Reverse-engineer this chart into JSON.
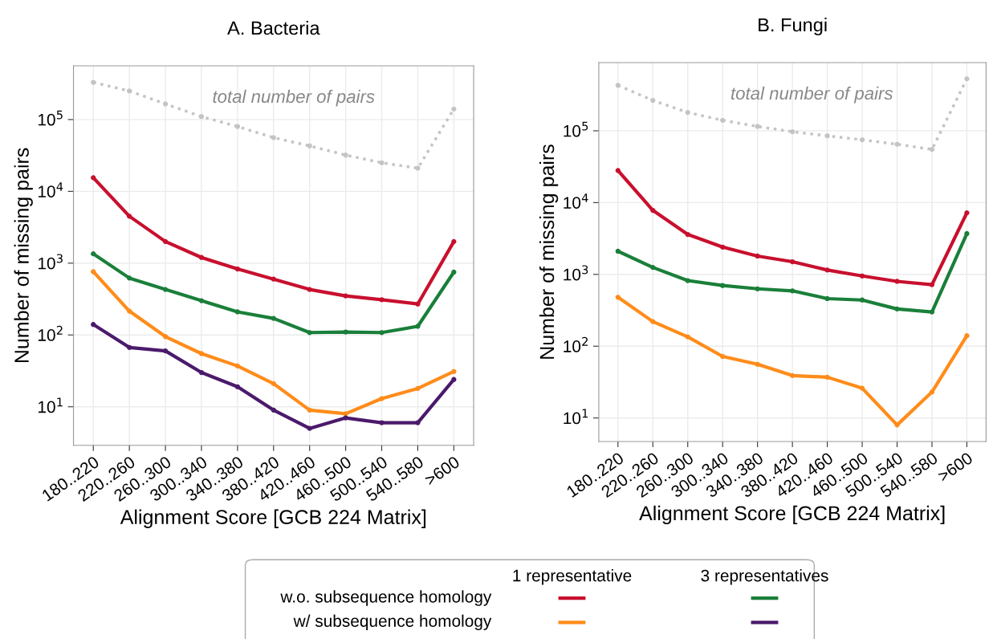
{
  "chart_data": [
    {
      "type": "line",
      "title": "A. Bacteria",
      "xlabel": "Alignment Score [GCB 224 Matrix]",
      "ylabel": "Number of missing pairs",
      "log": true,
      "grid": true,
      "marker": "circle",
      "line_style": "solid",
      "categories": [
        "180..220",
        "220..260",
        "260..300",
        "300..340",
        "340..380",
        "380..420",
        "420..460",
        "460..500",
        "500..540",
        "540..580",
        ">600"
      ],
      "ylim": [
        2.9,
        560000
      ],
      "yticks": [
        {
          "value": 10,
          "label": "10$^{1}$"
        },
        {
          "value": 100,
          "label": "10$^{2}$"
        },
        {
          "value": 1000,
          "label": "10$^{3}$"
        },
        {
          "value": 10000,
          "label": "10$^{4}$"
        },
        {
          "value": 100000,
          "label": "10$^{5}$"
        }
      ],
      "series": [
        {
          "color": "#c8102e",
          "values": [
            15500,
            4500,
            2000,
            1200,
            830,
            600,
            430,
            350,
            310,
            270,
            2000
          ]
        },
        {
          "color": "#1a7f3a",
          "values": [
            1350,
            620,
            430,
            300,
            210,
            170,
            108,
            110,
            108,
            132,
            750
          ]
        },
        {
          "color": "#ff8c1a",
          "values": [
            760,
            215,
            95,
            55,
            37,
            21,
            9,
            8,
            13,
            18,
            31
          ]
        },
        {
          "color": "#4b1a6b",
          "values": [
            140,
            67,
            60,
            30,
            19,
            9,
            5,
            7,
            6,
            6,
            24
          ]
        },
        {
          "color": "#c4c4c4",
          "line_style": "dotted",
          "values": [
            330000,
            250000,
            165000,
            110000,
            80000,
            56000,
            43000,
            32000,
            25000,
            21000,
            140000
          ]
        }
      ],
      "annotations": [
        "total number of pairs",
        "1 representative",
        "3 representatives",
        "w.o. subsequence homology",
        "w/ subsequence homology"
      ]
    },
    {
      "type": "line",
      "title": "B. Fungi",
      "xlabel": "Alignment Score [GCB 224 Matrix]",
      "ylabel": "Number of missing pairs",
      "log": true,
      "grid": true,
      "marker": "circle",
      "line_style": "solid",
      "categories": [
        "180..220",
        "220..260",
        "260..300",
        "300..340",
        "340..380",
        "380..420",
        "420..460",
        "460..500",
        "500..540",
        "540..580",
        ">600"
      ],
      "ylim": [
        4.7,
        890000
      ],
      "yticks": [
        {
          "value": 10,
          "label": "10$^{1}$"
        },
        {
          "value": 100,
          "label": "10$^{2}$"
        },
        {
          "value": 1000,
          "label": "10$^{3}$"
        },
        {
          "value": 10000,
          "label": "10$^{4}$"
        },
        {
          "value": 100000,
          "label": "10$^{5}$"
        }
      ],
      "series": [
        {
          "color": "#c8102e",
          "values": [
            28000,
            7800,
            3600,
            2400,
            1800,
            1500,
            1150,
            950,
            800,
            720,
            7200
          ]
        },
        {
          "color": "#1a7f3a",
          "values": [
            2100,
            1250,
            820,
            700,
            630,
            590,
            460,
            440,
            330,
            300,
            3700
          ]
        },
        {
          "color": "#ff8c1a",
          "values": [
            480,
            220,
            135,
            72,
            56,
            39,
            37,
            26,
            8,
            23,
            140
          ]
        },
        {
          "color": "#c4c4c4",
          "line_style": "dotted",
          "values": [
            430000,
            265000,
            180000,
            140000,
            115000,
            97000,
            85000,
            75000,
            65000,
            55000,
            530000
          ]
        }
      ],
      "annotations": [
        "total number of pairs"
      ]
    }
  ]
}
